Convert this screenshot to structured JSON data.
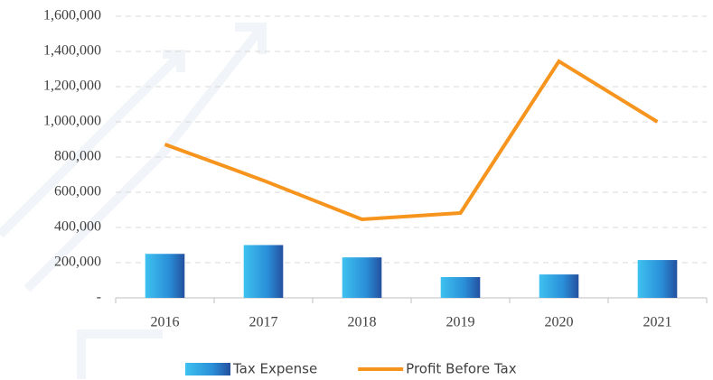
{
  "chart_data": {
    "type": "bar-line",
    "categories": [
      "2016",
      "2017",
      "2018",
      "2019",
      "2020",
      "2021"
    ],
    "series": [
      {
        "name": "Tax Expense",
        "type": "bar",
        "color": "#2a8fd8",
        "values": [
          250000,
          300000,
          230000,
          118000,
          133000,
          215000
        ]
      },
      {
        "name": "Profit Before Tax",
        "type": "line",
        "color": "#f7941d",
        "values": [
          872000,
          667000,
          446000,
          482000,
          1344000,
          1000000
        ]
      }
    ],
    "ylim": [
      0,
      1600000
    ],
    "yticks": [
      {
        "value": 0,
        "label": "-"
      },
      {
        "value": 200000,
        "label": "200,000"
      },
      {
        "value": 400000,
        "label": "400,000"
      },
      {
        "value": 600000,
        "label": "600,000"
      },
      {
        "value": 800000,
        "label": "800,000"
      },
      {
        "value": 1000000,
        "label": "1,000,000"
      },
      {
        "value": 1200000,
        "label": "1,200,000"
      },
      {
        "value": 1400000,
        "label": "1,400,000"
      },
      {
        "value": 1600000,
        "label": "1,600,000"
      }
    ],
    "grid": true,
    "legend": "bottom"
  }
}
